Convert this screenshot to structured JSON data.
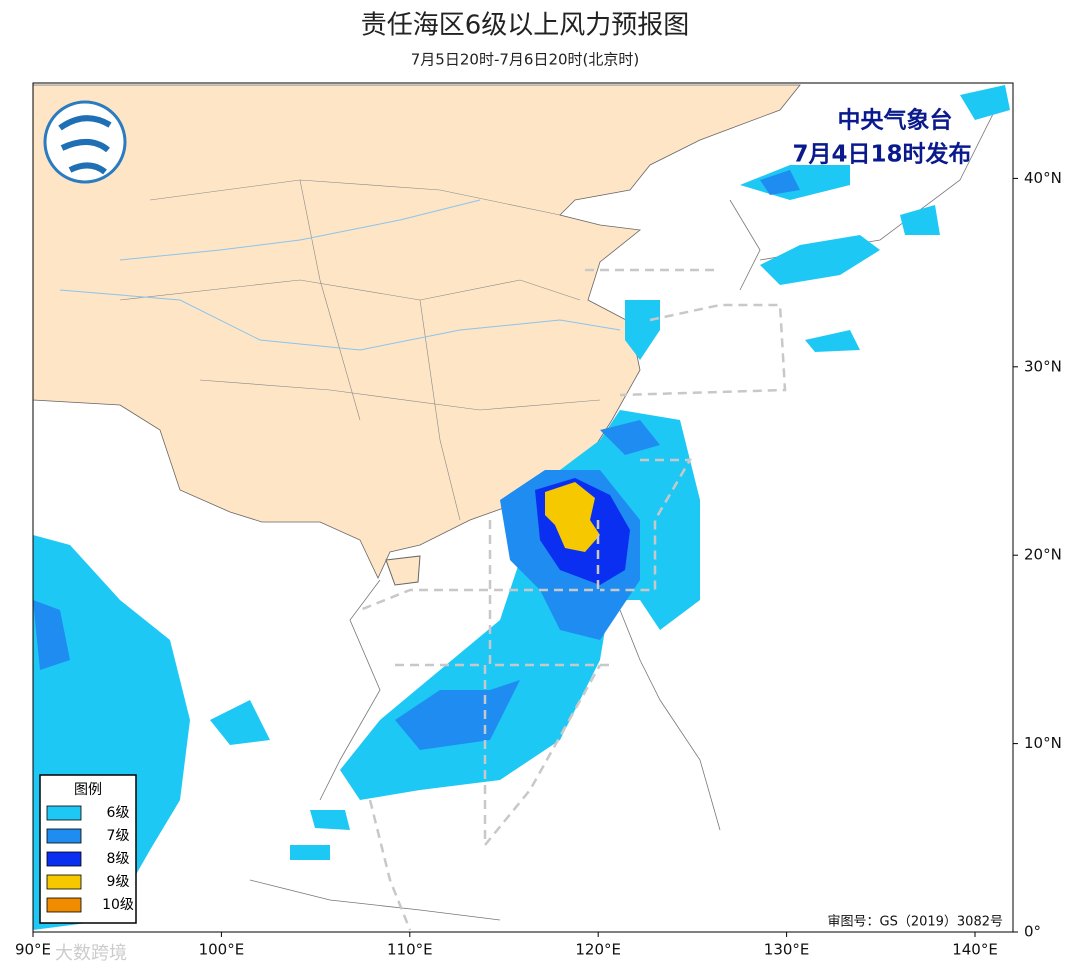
{
  "header": {
    "title": "责任海区6级以上风力预报图",
    "subtitle": "7月5日20时-7月6日20时(北京时)"
  },
  "issuer": {
    "name": "中央气象台",
    "time": "7月4日18时发布"
  },
  "axes": {
    "lon_ticks": [
      {
        "value": 90,
        "label": "90°E"
      },
      {
        "value": 100,
        "label": "100°E"
      },
      {
        "value": 110,
        "label": "110°E"
      },
      {
        "value": 120,
        "label": "120°E"
      },
      {
        "value": 130,
        "label": "130°E"
      },
      {
        "value": 140,
        "label": "140°E"
      }
    ],
    "lat_ticks": [
      {
        "value": 0,
        "label": "0°"
      },
      {
        "value": 10,
        "label": "10°N"
      },
      {
        "value": 20,
        "label": "20°N"
      },
      {
        "value": 30,
        "label": "30°N"
      },
      {
        "value": 40,
        "label": "40°N"
      }
    ]
  },
  "legend": {
    "title": "图例",
    "items": [
      {
        "label": "6级",
        "color": "#1ec8f5"
      },
      {
        "label": "7级",
        "color": "#1e8cf0"
      },
      {
        "label": "8级",
        "color": "#0a2ff0"
      },
      {
        "label": "9级",
        "color": "#f5c800"
      },
      {
        "label": "10级",
        "color": "#f08c00"
      }
    ]
  },
  "approval": "审图号：GS（2019）3082号",
  "watermark": "大数跨境"
}
